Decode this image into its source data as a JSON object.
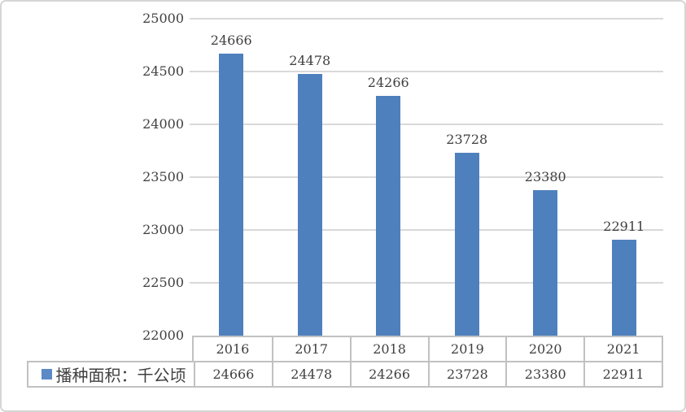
{
  "chart_data": {
    "type": "bar",
    "title": "",
    "xlabel": "",
    "ylabel": "",
    "categories": [
      "2016",
      "2017",
      "2018",
      "2019",
      "2020",
      "2021"
    ],
    "series": [
      {
        "name": "播种面积：千公顷",
        "values": [
          24666,
          24478,
          24266,
          23728,
          23380,
          22911
        ]
      }
    ],
    "ylim": [
      22000,
      25000
    ],
    "yticks": [
      25000,
      24500,
      24000,
      23500,
      23000,
      22500,
      22000
    ],
    "grid": true,
    "data_labels": true,
    "data_table": true,
    "legend_position": "bottom-left"
  },
  "legend": {
    "label": "播种面积：千公顷"
  },
  "colors": {
    "bar": "#4E80BD",
    "legend_swatch": "#5B8AC6",
    "gridline": "#D9D9D9",
    "table_border": "#C1C1C1",
    "text": "#3F3F3F"
  }
}
